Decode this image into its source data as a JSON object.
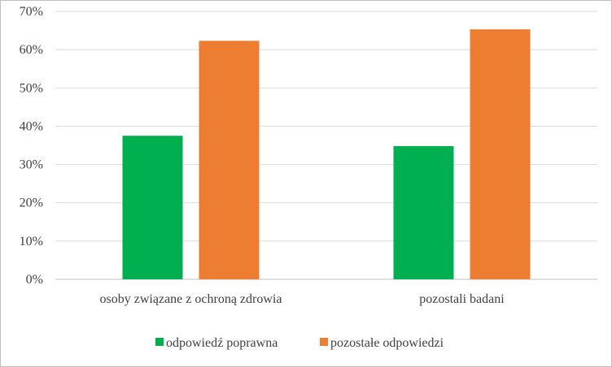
{
  "chart_data": {
    "type": "bar",
    "categories": [
      "osoby związane z ochroną zdrowia",
      "pozostali badani"
    ],
    "series": [
      {
        "name": "odpowiedź poprawna",
        "color": "#00b050",
        "values": [
          37.5,
          34.8
        ]
      },
      {
        "name": "pozostałe odpowiedzi",
        "color": "#ed7d31",
        "values": [
          62.3,
          65.3
        ]
      }
    ],
    "ylim": [
      0,
      70
    ],
    "yticks": [
      "0%",
      "10%",
      "20%",
      "30%",
      "40%",
      "50%",
      "60%",
      "70%"
    ],
    "grid": true,
    "legend_position": "bottom"
  }
}
